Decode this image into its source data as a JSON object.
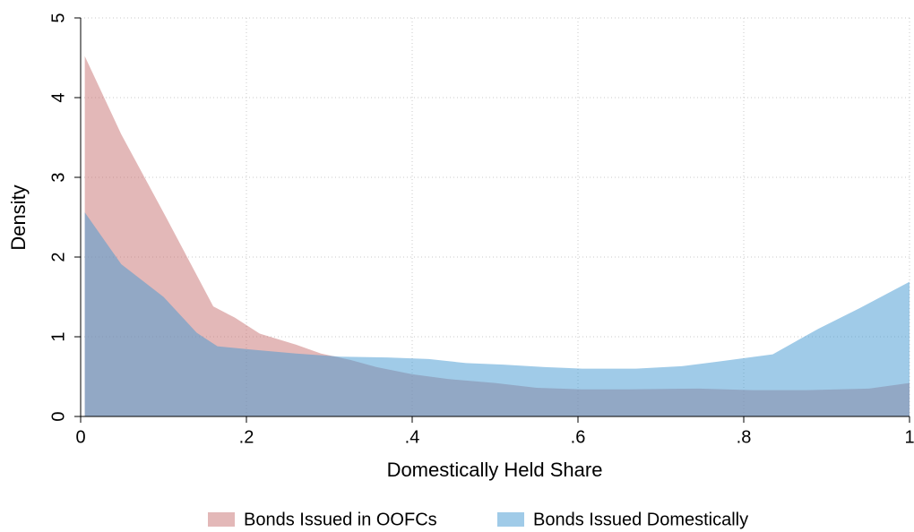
{
  "chart_data": {
    "type": "area",
    "xlabel": "Domestically Held Share",
    "ylabel": "Density",
    "xlim": [
      0,
      1
    ],
    "ylim": [
      0,
      5
    ],
    "xticks": [
      0,
      {
        "value": 0.2,
        "label": ".2"
      },
      {
        "value": 0.4,
        "label": ".4"
      },
      {
        "value": 0.6,
        "label": ".6"
      },
      {
        "value": 0.8,
        "label": ".8"
      },
      1
    ],
    "yticks": [
      0,
      1,
      2,
      3,
      4,
      5
    ],
    "grid": true,
    "legend": "bottom",
    "series": [
      {
        "name": "Bonds Issued in OOFCs",
        "color": "#c77171",
        "x": [
          0.005,
          0.049,
          0.103,
          0.16,
          0.186,
          0.216,
          0.26,
          0.29,
          0.325,
          0.357,
          0.4,
          0.443,
          0.5,
          0.55,
          0.605,
          0.659,
          0.746,
          0.811,
          0.876,
          0.951,
          1
        ],
        "values": [
          4.52,
          3.54,
          2.5,
          1.38,
          1.24,
          1.04,
          0.9,
          0.79,
          0.71,
          0.62,
          0.53,
          0.47,
          0.42,
          0.36,
          0.34,
          0.34,
          0.35,
          0.33,
          0.33,
          0.35,
          0.42
        ]
      },
      {
        "name": "Bonds Issued Domestically",
        "color": "#4197d1",
        "x": [
          0.005,
          0.049,
          0.1,
          0.14,
          0.165,
          0.205,
          0.26,
          0.314,
          0.37,
          0.42,
          0.465,
          0.51,
          0.56,
          0.605,
          0.67,
          0.725,
          0.77,
          0.835,
          0.89,
          0.94,
          1
        ],
        "values": [
          2.56,
          1.91,
          1.5,
          1.05,
          0.88,
          0.84,
          0.79,
          0.75,
          0.74,
          0.72,
          0.67,
          0.65,
          0.62,
          0.6,
          0.6,
          0.63,
          0.69,
          0.78,
          1.1,
          1.36,
          1.69
        ]
      }
    ]
  }
}
